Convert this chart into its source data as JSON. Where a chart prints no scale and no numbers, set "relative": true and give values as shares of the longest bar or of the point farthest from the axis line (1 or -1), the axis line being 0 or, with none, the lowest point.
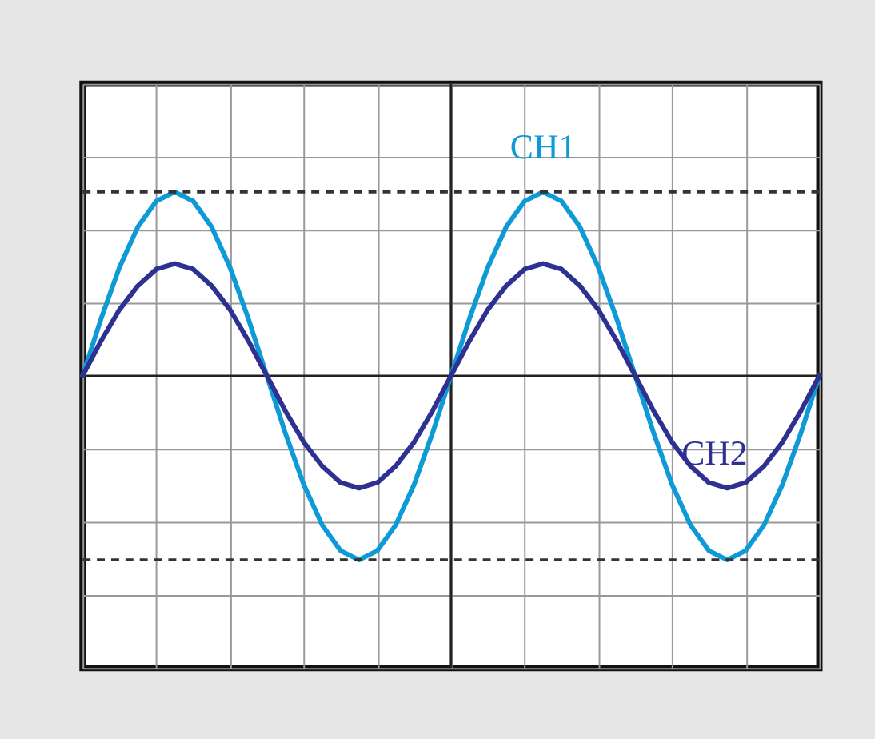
{
  "chart_data": {
    "type": "line",
    "relative": true,
    "grid": true,
    "legend": false,
    "marker": "none",
    "line_style": "solid",
    "categories": [
      null,
      null,
      null,
      null,
      null,
      null,
      null,
      null,
      null,
      null,
      null,
      null,
      null,
      null,
      null,
      null,
      null,
      null,
      null,
      null,
      null,
      null,
      null,
      null,
      null,
      null,
      null,
      null,
      null,
      null,
      null,
      null,
      null,
      null,
      null,
      null,
      null,
      null,
      null,
      null,
      null
    ],
    "series": [
      {
        "name": "CH1",
        "color": "#0e9ad7",
        "values": [
          0,
          0.31,
          0.59,
          0.81,
          0.95,
          1,
          0.95,
          0.81,
          0.59,
          0.31,
          0,
          -0.31,
          -0.59,
          -0.81,
          -0.95,
          -1,
          -0.95,
          -0.81,
          -0.59,
          -0.31,
          0,
          0.31,
          0.59,
          0.81,
          0.95,
          1,
          0.95,
          0.81,
          0.59,
          0.31,
          0,
          -0.31,
          -0.59,
          -0.81,
          -0.95,
          -1,
          -0.95,
          -0.81,
          -0.59,
          -0.31,
          0
        ]
      },
      {
        "name": "CH2",
        "color": "#2e3192",
        "values": [
          0,
          0.19,
          0.36,
          0.49,
          0.58,
          0.61,
          0.58,
          0.49,
          0.36,
          0.19,
          0,
          -0.19,
          -0.36,
          -0.49,
          -0.58,
          -0.61,
          -0.58,
          -0.49,
          -0.36,
          -0.19,
          0,
          0.19,
          0.36,
          0.49,
          0.58,
          0.61,
          0.58,
          0.49,
          0.36,
          0.19,
          0,
          -0.19,
          -0.36,
          -0.49,
          -0.58,
          -0.61,
          -0.58,
          -0.49,
          -0.36,
          -0.19,
          0
        ]
      }
    ],
    "ref_lines": [
      {
        "axis": "y",
        "value": 1,
        "color": "#333333",
        "line_style": "dashed"
      },
      {
        "axis": "y",
        "value": -1,
        "color": "#333333",
        "line_style": "dashed"
      }
    ]
  }
}
